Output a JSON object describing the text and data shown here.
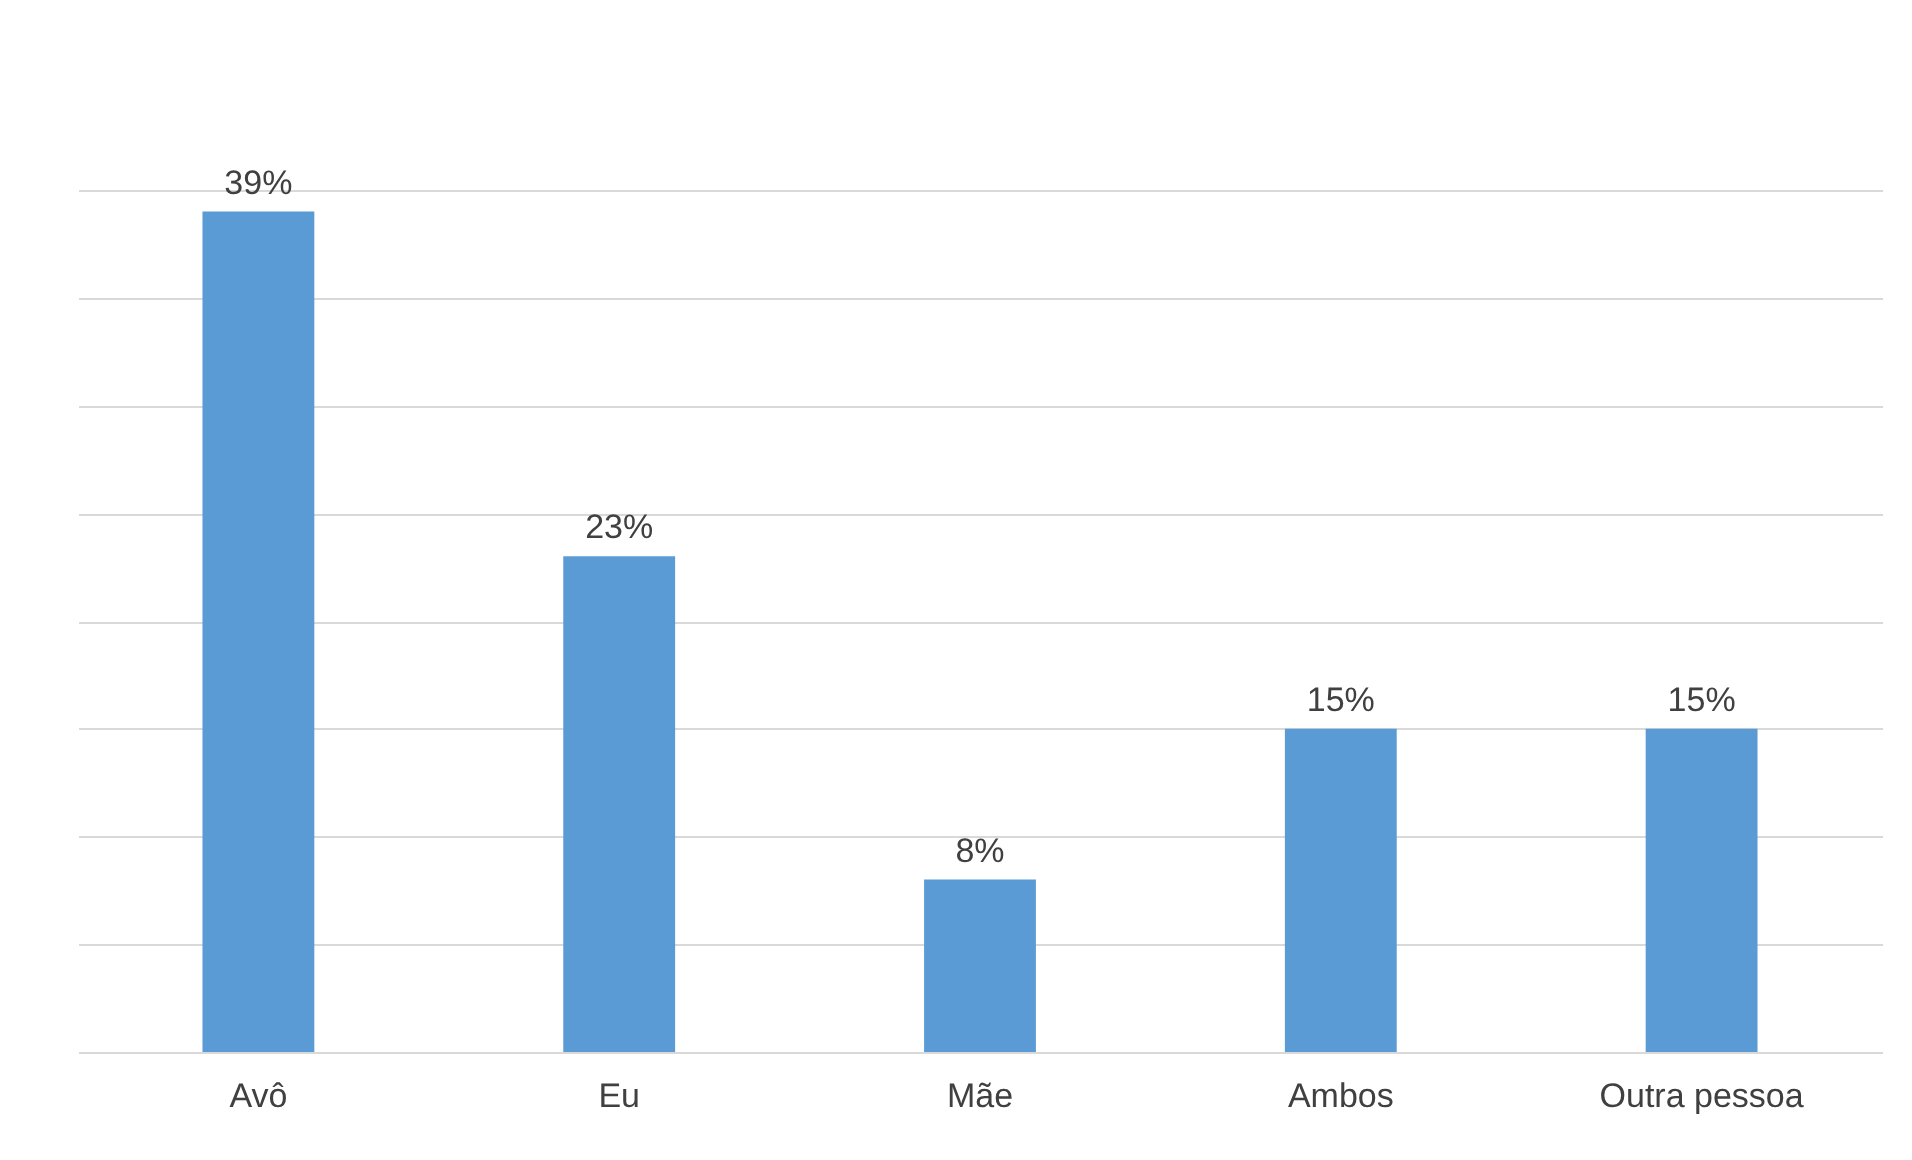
{
  "chart_data": {
    "type": "bar",
    "categories": [
      "Avô",
      "Eu",
      "Mãe",
      "Ambos",
      "Outra pessoa"
    ],
    "values": [
      39,
      23,
      8,
      15,
      15
    ],
    "value_labels": [
      "39%",
      "23%",
      "8%",
      "15%",
      "15%"
    ],
    "color": "#5b9bd5",
    "grid": "y",
    "tick_labels": "x"
  }
}
